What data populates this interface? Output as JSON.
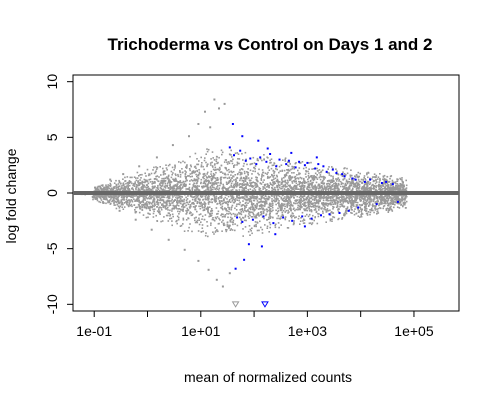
{
  "chart_data": {
    "type": "scatter",
    "title": "Trichoderma vs Control on Days 1 and 2",
    "xlabel": "mean of normalized counts",
    "ylabel": "log fold change",
    "x_scale": "log10",
    "xlim": [
      0.04,
      700000
    ],
    "ylim": [
      -10.6,
      10.6
    ],
    "x_ticks": [
      {
        "value": 0.1,
        "label": "1e-01"
      },
      {
        "value": 10,
        "label": "1e+01"
      },
      {
        "value": 1000,
        "label": "1e+03"
      },
      {
        "value": 100000,
        "label": "1e+05"
      }
    ],
    "x_minor_ticks": [
      1,
      100,
      10000
    ],
    "y_ticks": [
      {
        "value": -10,
        "label": "-10"
      },
      {
        "value": -5,
        "label": "-5"
      },
      {
        "value": 0,
        "label": "0"
      },
      {
        "value": 5,
        "label": "5"
      },
      {
        "value": 10,
        "label": "10"
      }
    ],
    "reference_line_y": 0,
    "colors": {
      "not_significant": "#999999",
      "significant": "#0000ff",
      "reference_line": "#666666",
      "zero_line_points": "#aaaaaa"
    },
    "series": [
      {
        "name": "",
        "color": "#0000ff",
        "points": [
          [
            35,
            4.1
          ],
          [
            42,
            3.4
          ],
          [
            55,
            3.8
          ],
          [
            48,
            -2.2
          ],
          [
            60,
            -2.6
          ],
          [
            70,
            2.9
          ],
          [
            85,
            3.1
          ],
          [
            95,
            -2.4
          ],
          [
            110,
            2.6
          ],
          [
            130,
            3.2
          ],
          [
            150,
            -2.1
          ],
          [
            170,
            2.8
          ],
          [
            200,
            3.5
          ],
          [
            230,
            -2.7
          ],
          [
            260,
            2.4
          ],
          [
            300,
            3.0
          ],
          [
            350,
            -2.2
          ],
          [
            400,
            2.6
          ],
          [
            450,
            2.9
          ],
          [
            520,
            -2.5
          ],
          [
            600,
            2.3
          ],
          [
            700,
            2.8
          ],
          [
            800,
            -2.1
          ],
          [
            900,
            2.5
          ],
          [
            1000,
            2.7
          ],
          [
            1200,
            -2.3
          ],
          [
            1400,
            2.2
          ],
          [
            1600,
            2.6
          ],
          [
            1800,
            -2.0
          ],
          [
            2000,
            2.4
          ],
          [
            2300,
            1.9
          ],
          [
            2600,
            -1.9
          ],
          [
            3000,
            2.1
          ],
          [
            3500,
            1.8
          ],
          [
            4000,
            -1.8
          ],
          [
            4500,
            1.7
          ],
          [
            5000,
            1.5
          ],
          [
            6000,
            -1.6
          ],
          [
            7000,
            1.3
          ],
          [
            8000,
            1.2
          ],
          [
            9000,
            -1.3
          ],
          [
            12000,
            1.0
          ],
          [
            15000,
            1.2
          ],
          [
            20000,
            -1.0
          ],
          [
            25000,
            0.9
          ],
          [
            30000,
            1.0
          ],
          [
            40000,
            0.8
          ],
          [
            50000,
            -0.8
          ],
          [
            40,
            6.2
          ],
          [
            60,
            5.1
          ],
          [
            45,
            -6.8
          ],
          [
            65,
            -6.0
          ],
          [
            140,
            -4.8
          ],
          [
            80,
            -4.6
          ],
          [
            120,
            4.7
          ],
          [
            250,
            -3.7
          ],
          [
            500,
            3.6
          ],
          [
            180,
            4.0
          ],
          [
            900,
            -3.0
          ],
          [
            1500,
            3.2
          ]
        ]
      },
      {
        "name": "",
        "color": "#0000ff",
        "marker": "triangle-down",
        "points": [
          [
            160,
            -10.0
          ]
        ]
      },
      {
        "name": "",
        "color": "#999999",
        "marker": "triangle-down",
        "points": [
          [
            45,
            -10.0
          ]
        ]
      },
      {
        "name": "",
        "color": "#999999",
        "points": [
          [
            18,
            8.4
          ],
          [
            22,
            7.6
          ],
          [
            12,
            7.3
          ],
          [
            28,
            8.0
          ],
          [
            9,
            6.2
          ],
          [
            15,
            5.9
          ],
          [
            6,
            5.1
          ],
          [
            3,
            4.3
          ],
          [
            1.5,
            3.2
          ],
          [
            0.7,
            2.4
          ],
          [
            0.35,
            1.7
          ],
          [
            0.2,
            1.2
          ],
          [
            0.15,
            -0.9
          ],
          [
            0.3,
            -1.6
          ],
          [
            0.6,
            -2.4
          ],
          [
            1.2,
            -3.3
          ],
          [
            2.5,
            -4.2
          ],
          [
            5,
            -5.1
          ],
          [
            9,
            -6.1
          ],
          [
            14,
            -6.9
          ],
          [
            20,
            -7.8
          ],
          [
            26,
            -8.4
          ],
          [
            35,
            -7.2
          ]
        ]
      }
    ]
  }
}
